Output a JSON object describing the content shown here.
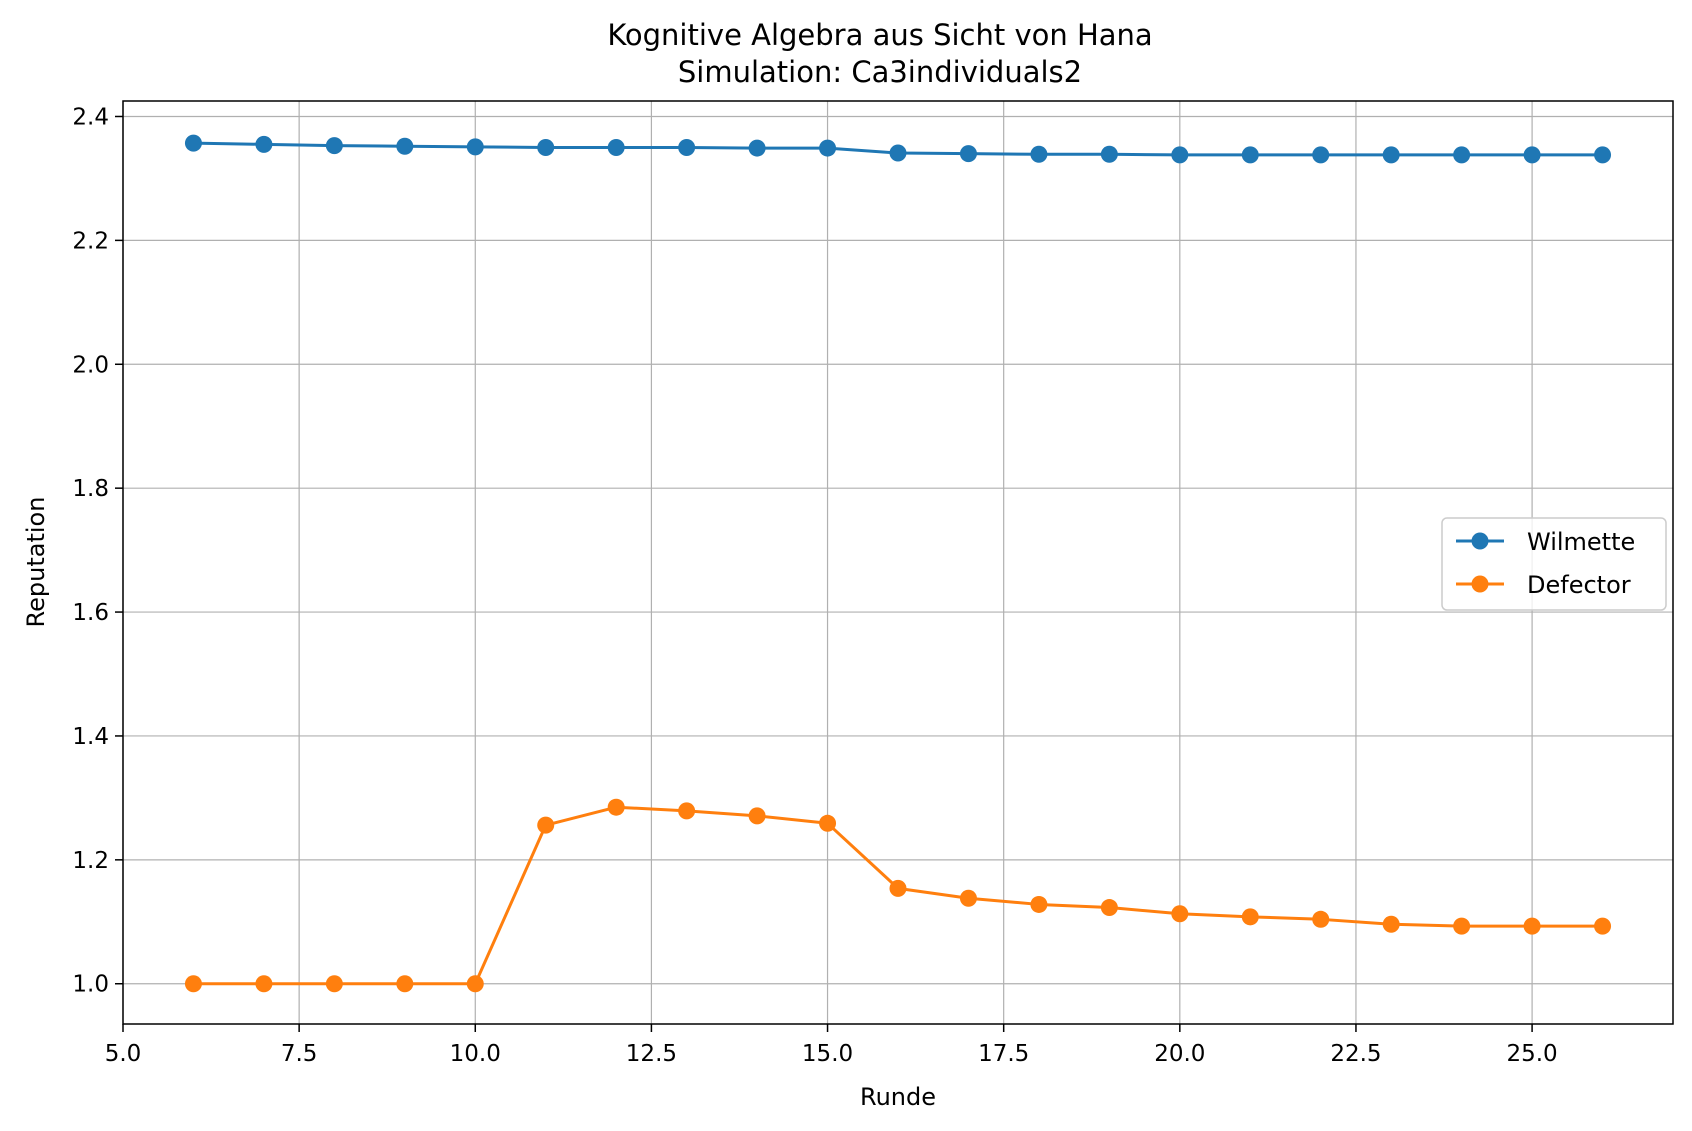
{
  "chart_data": {
    "type": "line",
    "title": "Kognitive Algebra aus Sicht von Hana",
    "subtitle": "Simulation: Ca3individuals2",
    "xlabel": "Runde",
    "ylabel": "Reputation",
    "xlim": [
      5.0,
      27.0
    ],
    "ylim": [
      0.935,
      2.425
    ],
    "xticks": [
      5.0,
      7.5,
      10.0,
      12.5,
      15.0,
      17.5,
      20.0,
      22.5,
      25.0
    ],
    "xtick_labels": [
      "5.0",
      "7.5",
      "10.0",
      "12.5",
      "15.0",
      "17.5",
      "20.0",
      "22.5",
      "25.0"
    ],
    "yticks": [
      1.0,
      1.2,
      1.4,
      1.6,
      1.8,
      2.0,
      2.2,
      2.4
    ],
    "ytick_labels": [
      "1.0",
      "1.2",
      "1.4",
      "1.6",
      "1.8",
      "2.0",
      "2.2",
      "2.4"
    ],
    "grid": true,
    "legend_position": "center-right",
    "x": [
      6,
      7,
      8,
      9,
      10,
      11,
      12,
      13,
      14,
      15,
      16,
      17,
      18,
      19,
      20,
      21,
      22,
      23,
      24,
      25,
      26
    ],
    "series": [
      {
        "name": "Wilmette",
        "color": "#1f77b4",
        "marker": "circle",
        "values": [
          2.357,
          2.355,
          2.353,
          2.352,
          2.351,
          2.35,
          2.35,
          2.35,
          2.349,
          2.349,
          2.341,
          2.34,
          2.339,
          2.339,
          2.338,
          2.338,
          2.338,
          2.338,
          2.338,
          2.338,
          2.338
        ]
      },
      {
        "name": "Defector",
        "color": "#ff7f0e",
        "marker": "circle",
        "values": [
          1.0,
          1.0,
          1.0,
          1.0,
          1.0,
          1.256,
          1.285,
          1.279,
          1.271,
          1.259,
          1.154,
          1.138,
          1.128,
          1.123,
          1.113,
          1.108,
          1.104,
          1.096,
          1.093,
          1.093,
          1.093
        ]
      }
    ]
  }
}
